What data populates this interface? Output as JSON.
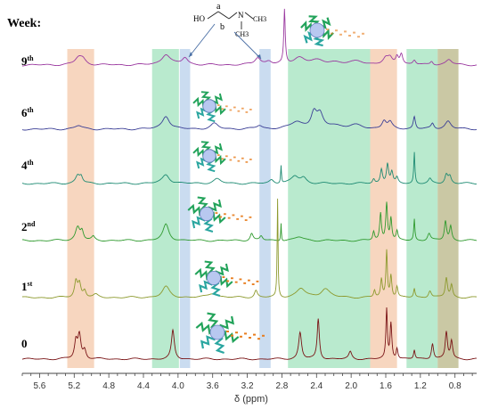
{
  "chart_data": {
    "type": "line",
    "header": "Week:",
    "xlabel": "δ (ppm)",
    "xlim": [
      5.8,
      0.55
    ],
    "x_reversed": true,
    "xticks": [
      5.6,
      5.2,
      4.8,
      4.4,
      4.0,
      3.6,
      3.2,
      2.8,
      2.4,
      2.0,
      1.6,
      1.2,
      0.8
    ],
    "xtick_labels": [
      "5.6",
      "5.2",
      "4.8",
      "4.4",
      "4.0",
      "3.6",
      "3.2",
      "2.8",
      "2.4",
      "2.0",
      "1.6",
      "1.2",
      "0.8"
    ],
    "molecule": {
      "atoms": [
        "HO",
        "N",
        "CH3",
        "CH3"
      ],
      "proton_labels": [
        "a",
        "b"
      ]
    },
    "highlight_bands": [
      {
        "from": 5.28,
        "to": 4.97,
        "color": "#f0b48a"
      },
      {
        "from": 4.3,
        "to": 3.99,
        "color": "#7fd9a6"
      },
      {
        "from": 3.98,
        "to": 3.86,
        "color": "#9ec0e4"
      },
      {
        "from": 3.06,
        "to": 2.93,
        "color": "#9ec0e4"
      },
      {
        "from": 2.73,
        "to": 1.78,
        "color": "#7fd9a6"
      },
      {
        "from": 1.78,
        "to": 1.47,
        "color": "#f0b48a"
      },
      {
        "from": 1.36,
        "to": 1.0,
        "color": "#7fd9a6"
      },
      {
        "from": 1.0,
        "to": 0.76,
        "color": "#9e9a5a"
      }
    ],
    "series": [
      {
        "week_num": "9",
        "week_sup": "th",
        "color": "#9b3aa0",
        "peaks": [
          [
            5.15,
            8,
            0.05
          ],
          [
            5.1,
            5,
            0.04
          ],
          [
            4.14,
            12,
            0.06
          ],
          [
            3.92,
            8,
            0.04
          ],
          [
            3.08,
            8,
            0.04
          ],
          [
            2.95,
            4,
            0.04
          ],
          [
            2.77,
            60,
            0.01
          ],
          [
            2.6,
            8,
            0.08
          ],
          [
            2.4,
            4,
            0.1
          ],
          [
            2.2,
            3,
            0.1
          ],
          [
            1.92,
            4,
            0.1
          ],
          [
            1.6,
            7,
            0.04
          ],
          [
            1.55,
            6,
            0.03
          ],
          [
            1.47,
            9,
            0.02
          ],
          [
            1.42,
            12,
            0.02
          ],
          [
            1.27,
            5,
            0.02
          ],
          [
            1.07,
            4,
            0.02
          ],
          [
            0.87,
            6,
            0.04
          ]
        ]
      },
      {
        "week_num": "6",
        "week_sup": "th",
        "color": "#3b3f96",
        "peaks": [
          [
            5.15,
            4,
            0.05
          ],
          [
            4.14,
            15,
            0.05
          ],
          [
            3.58,
            6,
            0.05
          ],
          [
            3.06,
            4,
            0.04
          ],
          [
            2.63,
            8,
            0.08
          ],
          [
            2.43,
            18,
            0.04
          ],
          [
            2.36,
            14,
            0.04
          ],
          [
            2.2,
            4,
            0.1
          ],
          [
            1.95,
            4,
            0.1
          ],
          [
            1.62,
            9,
            0.03
          ],
          [
            1.55,
            7,
            0.03
          ],
          [
            1.27,
            14,
            0.015
          ],
          [
            1.06,
            6,
            0.02
          ],
          [
            0.88,
            9,
            0.04
          ]
        ]
      },
      {
        "week_num": "4",
        "week_sup": "th",
        "color": "#1e8b73",
        "peaks": [
          [
            5.16,
            9,
            0.03
          ],
          [
            5.12,
            7,
            0.02
          ],
          [
            4.14,
            10,
            0.05
          ],
          [
            3.55,
            5,
            0.05
          ],
          [
            2.92,
            4,
            0.03
          ],
          [
            2.81,
            20,
            0.006
          ],
          [
            2.65,
            8,
            0.05
          ],
          [
            2.55,
            6,
            0.04
          ],
          [
            1.74,
            5,
            0.015
          ],
          [
            1.65,
            16,
            0.015
          ],
          [
            1.58,
            22,
            0.015
          ],
          [
            1.53,
            12,
            0.015
          ],
          [
            1.47,
            6,
            0.015
          ],
          [
            1.27,
            35,
            0.008
          ],
          [
            1.09,
            5,
            0.02
          ],
          [
            0.9,
            10,
            0.02
          ],
          [
            0.86,
            8,
            0.02
          ]
        ]
      },
      {
        "week_num": "2",
        "week_sup": "nd",
        "color": "#2f9a2e",
        "peaks": [
          [
            5.16,
            15,
            0.03
          ],
          [
            5.11,
            10,
            0.02
          ],
          [
            4.98,
            4,
            0.02
          ],
          [
            4.14,
            18,
            0.04
          ],
          [
            3.15,
            8,
            0.02
          ],
          [
            3.04,
            5,
            0.02
          ],
          [
            2.81,
            20,
            0.005
          ],
          [
            2.6,
            4,
            0.06
          ],
          [
            1.74,
            10,
            0.012
          ],
          [
            1.66,
            30,
            0.012
          ],
          [
            1.59,
            42,
            0.012
          ],
          [
            1.54,
            25,
            0.012
          ],
          [
            1.47,
            10,
            0.012
          ],
          [
            1.27,
            24,
            0.008
          ],
          [
            1.1,
            8,
            0.02
          ],
          [
            0.91,
            22,
            0.015
          ],
          [
            0.85,
            16,
            0.015
          ]
        ]
      },
      {
        "week_num": "1",
        "week_sup": "st",
        "color": "#8d9a2e",
        "peaks": [
          [
            5.18,
            18,
            0.02
          ],
          [
            5.14,
            15,
            0.02
          ],
          [
            5.08,
            8,
            0.02
          ],
          [
            4.95,
            3,
            0.03
          ],
          [
            4.14,
            12,
            0.05
          ],
          [
            3.6,
            5,
            0.06
          ],
          [
            3.1,
            8,
            0.02
          ],
          [
            2.85,
            110,
            0.006
          ],
          [
            2.58,
            10,
            0.06
          ],
          [
            2.3,
            10,
            0.06
          ],
          [
            1.73,
            8,
            0.012
          ],
          [
            1.65,
            20,
            0.012
          ],
          [
            1.59,
            52,
            0.01
          ],
          [
            1.54,
            25,
            0.012
          ],
          [
            1.47,
            12,
            0.012
          ],
          [
            1.27,
            10,
            0.01
          ],
          [
            1.09,
            8,
            0.02
          ],
          [
            0.9,
            22,
            0.015
          ],
          [
            0.84,
            14,
            0.015
          ]
        ]
      },
      {
        "week_num": "0",
        "week_sup": "",
        "color": "#7a1416",
        "peaks": [
          [
            5.18,
            20,
            0.02
          ],
          [
            5.14,
            26,
            0.02
          ],
          [
            5.08,
            10,
            0.02
          ],
          [
            4.06,
            32,
            0.02
          ],
          [
            2.59,
            30,
            0.02
          ],
          [
            2.38,
            45,
            0.015
          ],
          [
            2.01,
            8,
            0.02
          ],
          [
            1.59,
            55,
            0.01
          ],
          [
            1.54,
            40,
            0.012
          ],
          [
            1.47,
            12,
            0.012
          ],
          [
            1.27,
            10,
            0.01
          ],
          [
            1.06,
            18,
            0.015
          ],
          [
            0.9,
            30,
            0.015
          ],
          [
            0.84,
            20,
            0.015
          ]
        ]
      }
    ]
  }
}
